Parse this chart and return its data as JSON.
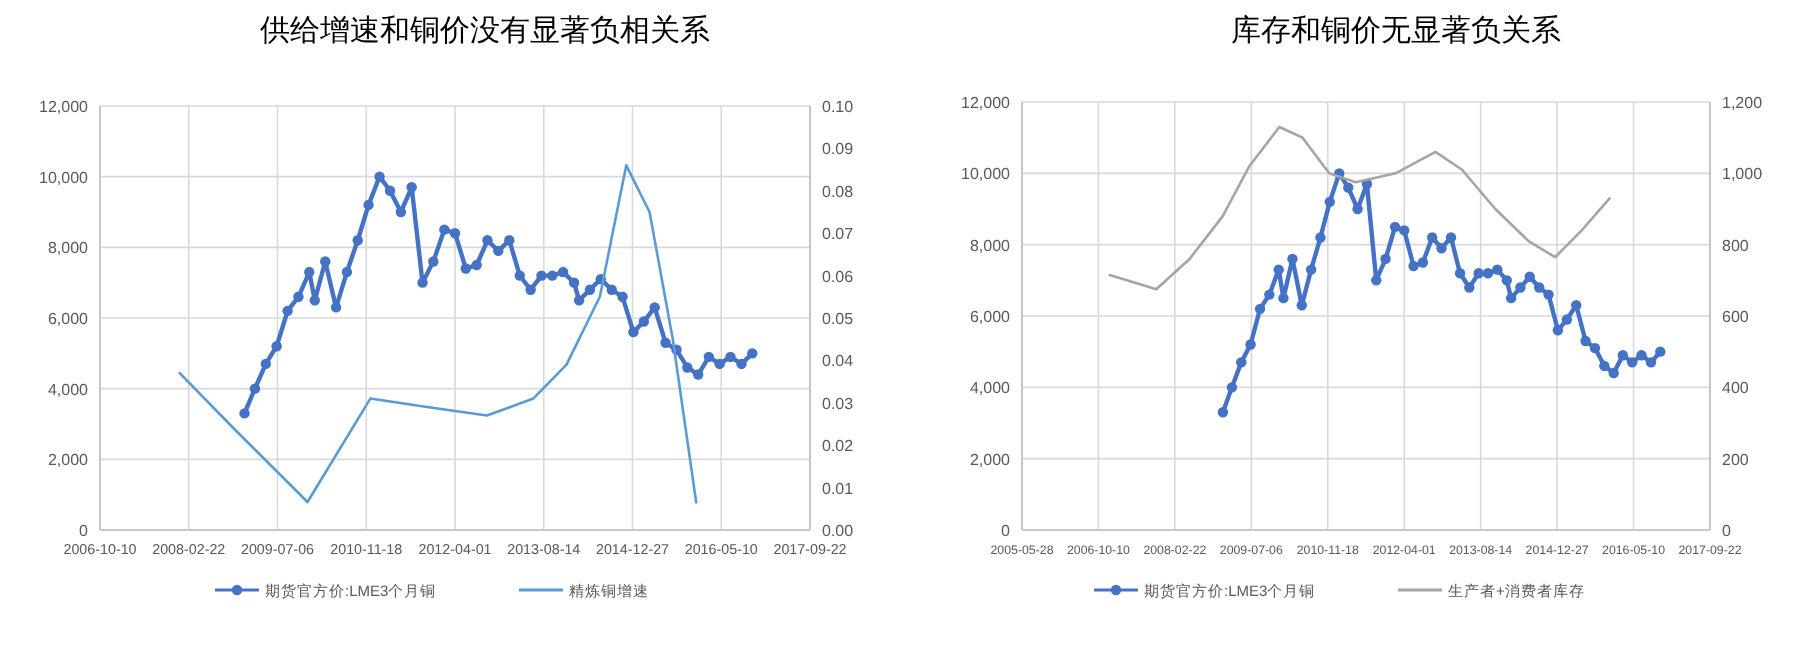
{
  "chart_data": [
    {
      "type": "line",
      "title": "供给增速和铜价没有显著负相关系",
      "grid": true,
      "legend": "bottom",
      "xlim": [
        "2006-10-10",
        "2017-09-22"
      ],
      "xticks": [
        "2006-10-10",
        "2008-02-22",
        "2009-07-06",
        "2010-11-18",
        "2012-04-01",
        "2013-08-14",
        "2014-12-27",
        "2016-05-10",
        "2017-09-22"
      ],
      "ylim": [
        0,
        12000
      ],
      "yticks": [
        {
          "value": 0,
          "label": "0"
        },
        {
          "value": 2000,
          "label": "2,000"
        },
        {
          "value": 4000,
          "label": "4,000"
        },
        {
          "value": 6000,
          "label": "6,000"
        },
        {
          "value": 8000,
          "label": "8,000"
        },
        {
          "value": 10000,
          "label": "10,000"
        },
        {
          "value": 12000,
          "label": "12,000"
        }
      ],
      "y2lim": [
        0,
        0.1
      ],
      "y2ticks": [
        {
          "value": 0,
          "label": "0.00"
        },
        {
          "value": 0.01,
          "label": "0.01"
        },
        {
          "value": 0.02,
          "label": "0.02"
        },
        {
          "value": 0.03,
          "label": "0.03"
        },
        {
          "value": 0.04,
          "label": "0.04"
        },
        {
          "value": 0.05,
          "label": "0.05"
        },
        {
          "value": 0.06,
          "label": "0.06"
        },
        {
          "value": 0.07,
          "label": "0.07"
        },
        {
          "value": 0.08,
          "label": "0.08"
        },
        {
          "value": 0.09,
          "label": "0.09"
        },
        {
          "value": 0.1,
          "label": "0.10"
        }
      ],
      "series": [
        {
          "name": "期货官方价:LME3个月铜",
          "color": "#4472c4",
          "marker": "circle",
          "x": [
            "2009-01",
            "2009-03",
            "2009-05",
            "2009-07",
            "2009-09",
            "2009-11",
            "2010-01",
            "2010-02",
            "2010-04",
            "2010-06",
            "2010-08",
            "2010-10",
            "2010-12",
            "2011-02",
            "2011-04",
            "2011-06",
            "2011-08",
            "2011-10",
            "2011-12",
            "2012-02",
            "2012-04",
            "2012-06",
            "2012-08",
            "2012-10",
            "2012-12",
            "2013-02",
            "2013-04",
            "2013-06",
            "2013-08",
            "2013-10",
            "2013-12",
            "2014-02",
            "2014-03",
            "2014-05",
            "2014-07",
            "2014-09",
            "2014-11",
            "2015-01",
            "2015-03",
            "2015-05",
            "2015-07",
            "2015-09",
            "2015-11",
            "2016-01",
            "2016-03",
            "2016-05",
            "2016-07",
            "2016-09",
            "2016-11"
          ],
          "values": [
            3300,
            4000,
            4700,
            5200,
            6200,
            6600,
            7300,
            6500,
            7600,
            6300,
            7300,
            8200,
            9200,
            10000,
            9600,
            9000,
            9700,
            7000,
            7600,
            8500,
            8400,
            7400,
            7500,
            8200,
            7900,
            8200,
            7200,
            6800,
            7200,
            7200,
            7300,
            7000,
            6500,
            6800,
            7100,
            6800,
            6600,
            5600,
            5900,
            6300,
            5300,
            5100,
            4600,
            4400,
            4900,
            4700,
            4900,
            4700,
            5000
          ]
        },
        {
          "name": "精炼铜增速",
          "color": "#5b9bd5",
          "marker": "none",
          "axis": "y2",
          "x": [
            "2008-01-02",
            "2008-11-24",
            "2009-12-22",
            "2010-12-11",
            "2011-10-26",
            "2012-09-28",
            "2013-06-16",
            "2013-12-20",
            "2014-06-26",
            "2014-11-22",
            "2015-04-02",
            "2015-08-11",
            "2015-12-21"
          ],
          "values": [
            0.037,
            0.023,
            0.0066,
            0.031,
            0.029,
            0.027,
            0.031,
            0.039,
            0.055,
            0.086,
            0.075,
            0.045,
            0.0065
          ]
        }
      ]
    },
    {
      "type": "line",
      "title": "库存和铜价无显著负关系",
      "grid": true,
      "legend": "bottom",
      "xlim": [
        "2005-05-28",
        "2017-09-22"
      ],
      "xticks": [
        "2005-05-28",
        "2006-10-10",
        "2008-02-22",
        "2009-07-06",
        "2010-11-18",
        "2012-04-01",
        "2013-08-14",
        "2014-12-27",
        "2016-05-10",
        "2017-09-22"
      ],
      "ylim": [
        0,
        12000
      ],
      "yticks": [
        {
          "value": 0,
          "label": "0"
        },
        {
          "value": 2000,
          "label": "2,000"
        },
        {
          "value": 4000,
          "label": "4,000"
        },
        {
          "value": 6000,
          "label": "6,000"
        },
        {
          "value": 8000,
          "label": "8,000"
        },
        {
          "value": 10000,
          "label": "10,000"
        },
        {
          "value": 12000,
          "label": "12,000"
        }
      ],
      "y2lim": [
        0,
        1200
      ],
      "y2ticks": [
        {
          "value": 0,
          "label": "0"
        },
        {
          "value": 200,
          "label": "200"
        },
        {
          "value": 400,
          "label": "400"
        },
        {
          "value": 600,
          "label": "600"
        },
        {
          "value": 800,
          "label": "800"
        },
        {
          "value": 1000,
          "label": "1,000"
        },
        {
          "value": 1200,
          "label": "1,200"
        }
      ],
      "series": [
        {
          "name": "期货官方价:LME3个月铜",
          "color": "#4472c4",
          "marker": "circle",
          "x": [
            "2009-01",
            "2009-03",
            "2009-05",
            "2009-07",
            "2009-09",
            "2009-11",
            "2010-01",
            "2010-02",
            "2010-04",
            "2010-06",
            "2010-08",
            "2010-10",
            "2010-12",
            "2011-02",
            "2011-04",
            "2011-06",
            "2011-08",
            "2011-10",
            "2011-12",
            "2012-02",
            "2012-04",
            "2012-06",
            "2012-08",
            "2012-10",
            "2012-12",
            "2013-02",
            "2013-04",
            "2013-06",
            "2013-08",
            "2013-10",
            "2013-12",
            "2014-02",
            "2014-03",
            "2014-05",
            "2014-07",
            "2014-09",
            "2014-11",
            "2015-01",
            "2015-03",
            "2015-05",
            "2015-07",
            "2015-09",
            "2015-11",
            "2016-01",
            "2016-03",
            "2016-05",
            "2016-07",
            "2016-09",
            "2016-11"
          ],
          "values": [
            3300,
            4000,
            4700,
            5200,
            6200,
            6600,
            7300,
            6500,
            7600,
            6300,
            7300,
            8200,
            9200,
            10000,
            9600,
            9000,
            9700,
            7000,
            7600,
            8500,
            8400,
            7400,
            7500,
            8200,
            7900,
            8200,
            7200,
            6800,
            7200,
            7200,
            7300,
            7000,
            6500,
            6800,
            7100,
            6800,
            6600,
            5600,
            5900,
            6300,
            5300,
            5100,
            4600,
            4400,
            4900,
            4700,
            4900,
            4700,
            5000
          ]
        },
        {
          "name": "生产者+消费者库存",
          "color": "#a5a5a5",
          "marker": "none",
          "axis": "y2",
          "x": [
            "2006-12-23",
            "2007-10-23",
            "2008-05-28",
            "2008-12-31",
            "2009-06-23",
            "2010-01-05",
            "2010-06-06",
            "2010-11-27",
            "2011-05-20",
            "2012-02-04",
            "2012-10-22",
            "2013-04-14",
            "2013-11-18",
            "2014-06-23",
            "2014-12-14",
            "2015-06-06",
            "2015-12-05"
          ],
          "values": [
            715,
            675,
            760,
            880,
            1020,
            1130,
            1100,
            1000,
            975,
            1000,
            1060,
            1010,
            900,
            810,
            765,
            840,
            930
          ]
        }
      ]
    }
  ]
}
